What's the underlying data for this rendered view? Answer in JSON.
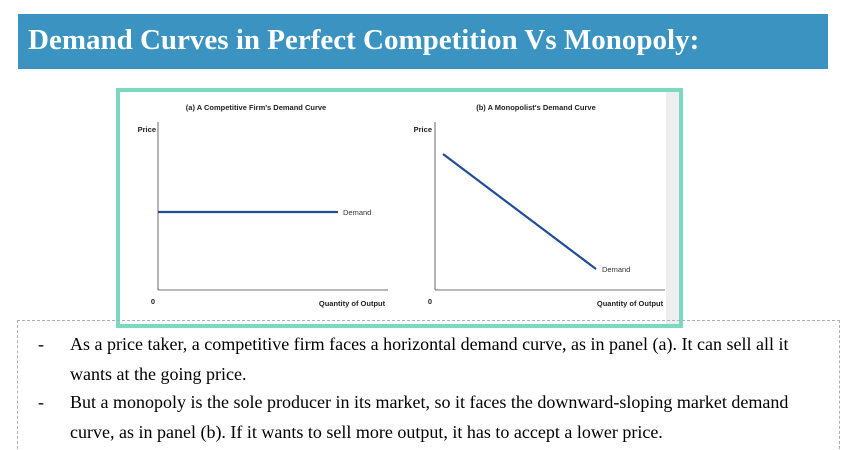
{
  "title": "Demand Curves in Perfect Competition Vs Monopoly:",
  "figure": {
    "panel_a": {
      "caption": "(a) A Competitive Firm's Demand Curve",
      "y_label": "Price",
      "x_label": "Quantity of Output",
      "origin": "0",
      "curve_label": "Demand"
    },
    "panel_b": {
      "caption": "(b) A Monopolist's Demand Curve",
      "y_label": "Price",
      "x_label": "Quantity of Output",
      "origin": "0",
      "curve_label": "Demand"
    },
    "curve_color": "#1f4e96",
    "frame_color": "#7bd9c2"
  },
  "bullets": [
    {
      "marker": "-",
      "text": "As a price taker, a competitive firm faces a horizontal demand curve, as in panel (a). It can sell all it wants at the going price."
    },
    {
      "marker": "-",
      "text": "But a monopoly is the sole producer in its market, so it faces the downward-sloping market demand curve, as in panel (b). If it wants to sell more output, it has to accept a lower price."
    }
  ],
  "colors": {
    "title_bar": "#3a93c1",
    "title_text": "#ffffff"
  }
}
